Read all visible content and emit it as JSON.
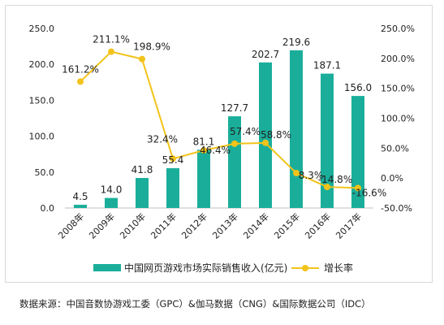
{
  "chart_data": {
    "type": "bar+line",
    "categories": [
      "2008年",
      "2009年",
      "2010年",
      "2011年",
      "2012年",
      "2013年",
      "2014年",
      "2015年",
      "2016年",
      "2017年"
    ],
    "series": [
      {
        "name": "中国网页游戏市场实际销售收入(亿元)",
        "type": "bar",
        "axis": "left",
        "values": [
          4.5,
          14.0,
          41.8,
          55.4,
          81.1,
          127.7,
          202.7,
          219.6,
          187.1,
          156.0
        ],
        "labels": [
          "4.5",
          "14.0",
          "41.8",
          "55.4",
          "81.1",
          "127.7",
          "202.7",
          "219.6",
          "187.1",
          "156.0"
        ],
        "color": "#1aae9a"
      },
      {
        "name": "增长率",
        "type": "line",
        "axis": "right",
        "values": [
          161.2,
          211.1,
          198.9,
          32.4,
          46.4,
          57.4,
          58.8,
          8.3,
          -14.8,
          -16.6
        ],
        "labels": [
          "161.2%",
          "211.1%",
          "198.9%",
          "32.4%",
          "46.4%",
          "57.4%",
          "58.8%",
          "8.3%",
          "-14.8%",
          "-16.6%"
        ],
        "color": "#f2c31a"
      }
    ],
    "yleft": {
      "lim": [
        0,
        250
      ],
      "ticks": [
        "0.0",
        "50.0",
        "100.0",
        "150.0",
        "200.0",
        "250.0"
      ]
    },
    "yright": {
      "lim": [
        -50,
        250
      ],
      "ticks": [
        "-50.0%",
        "0.0%",
        "50.0%",
        "100.0%",
        "150.0%",
        "200.0%",
        "250.0%"
      ]
    },
    "grid": false,
    "legend": "bottom"
  },
  "source_note": "数据来源：中国音数协游戏工委（GPC）&伽马数据（CNG）&国际数据公司（IDC）"
}
